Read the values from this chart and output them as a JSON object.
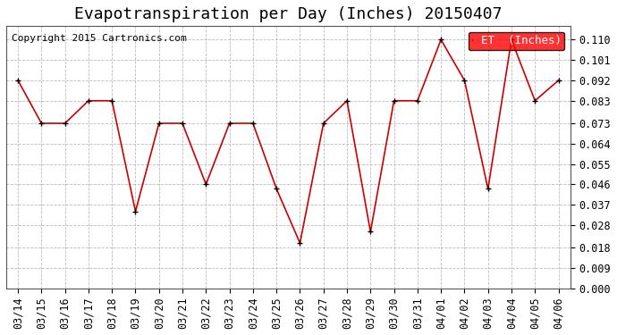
{
  "title": "Evapotranspiration per Day (Inches) 20150407",
  "copyright": "Copyright 2015 Cartronics.com",
  "legend_label": "ET  (Inches)",
  "dates": [
    "03/14",
    "03/15",
    "03/16",
    "03/17",
    "03/18",
    "03/19",
    "03/20",
    "03/21",
    "03/22",
    "03/23",
    "03/24",
    "03/25",
    "03/26",
    "03/27",
    "03/28",
    "03/29",
    "03/30",
    "03/31",
    "04/01",
    "04/02",
    "04/03",
    "04/04",
    "04/05",
    "04/06"
  ],
  "values": [
    0.092,
    0.073,
    0.073,
    0.083,
    0.083,
    0.034,
    0.073,
    0.073,
    0.046,
    0.073,
    0.073,
    0.044,
    0.02,
    0.073,
    0.083,
    0.025,
    0.083,
    0.083,
    0.11,
    0.092,
    0.044,
    0.11,
    0.083,
    0.092
  ],
  "ylim": [
    0.0,
    0.116
  ],
  "yticks": [
    0.0,
    0.009,
    0.018,
    0.028,
    0.037,
    0.046,
    0.055,
    0.064,
    0.073,
    0.083,
    0.092,
    0.101,
    0.11
  ],
  "line_color": "#cc0000",
  "marker_color": "#000000",
  "grid_color": "#aaaaaa",
  "bg_color": "#ffffff",
  "legend_bg": "#ff0000",
  "legend_text_color": "#ffffff",
  "title_fontsize": 13,
  "copyright_fontsize": 8,
  "tick_fontsize": 8.5,
  "legend_fontsize": 9
}
